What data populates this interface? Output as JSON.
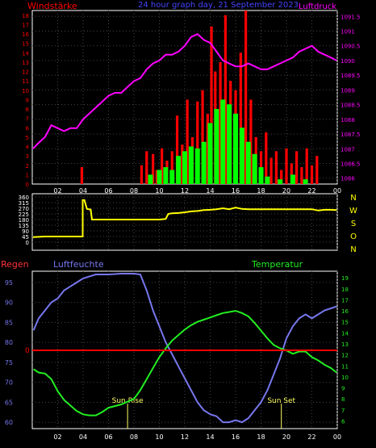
{
  "colors": {
    "background": "#000000",
    "frame": "#ffffff",
    "wind_axis": "#ff0000",
    "pressure": "#ff00ff",
    "wind_gust": "#ff0000",
    "wind_avg": "#00ff00",
    "direction": "#ffff00",
    "compass": "#ffff00",
    "humidity": "#7777ee",
    "temperature": "#22ee22",
    "rain": "#ff0000",
    "sun_marker": "#ffff66"
  },
  "chart_data": [
    {
      "type": "bar",
      "name": "wind_pressure",
      "title": "24 hour graph day, 21 September 2023",
      "ylabel_left": "Windstärke",
      "ylabel_right": "Luftdruck",
      "x_ticks": [
        "02",
        "04",
        "06",
        "08",
        "10",
        "12",
        "14",
        "16",
        "18",
        "20",
        "22",
        "00"
      ],
      "y_left_ticks": [
        0,
        1,
        2,
        3,
        4,
        5,
        6,
        7,
        8,
        9,
        10,
        11,
        12,
        13,
        14,
        15,
        16,
        17,
        18
      ],
      "y_left_lim": [
        0,
        18.5
      ],
      "y_right_ticks": [
        1086,
        1086.5,
        1087,
        1087.5,
        1088,
        1088.5,
        1089,
        1089.5,
        1090,
        1090.5,
        1091,
        1091.5
      ],
      "y_right_lim": [
        1085.8,
        1091.7
      ],
      "series": [
        {
          "name": "Luftdruck",
          "values": [
            [
              0.05,
              1087.0
            ],
            [
              0.5,
              1087.2
            ],
            [
              1,
              1087.4
            ],
            [
              1.5,
              1087.8
            ],
            [
              2,
              1087.7
            ],
            [
              2.5,
              1087.6
            ],
            [
              3,
              1087.7
            ],
            [
              3.5,
              1087.7
            ],
            [
              4,
              1088.0
            ],
            [
              4.5,
              1088.2
            ],
            [
              5,
              1088.4
            ],
            [
              5.5,
              1088.6
            ],
            [
              6,
              1088.8
            ],
            [
              6.5,
              1088.9
            ],
            [
              7,
              1088.9
            ],
            [
              7.5,
              1089.1
            ],
            [
              8,
              1089.3
            ],
            [
              8.5,
              1089.4
            ],
            [
              9,
              1089.7
            ],
            [
              9.5,
              1089.9
            ],
            [
              10,
              1090.0
            ],
            [
              10.5,
              1090.2
            ],
            [
              11,
              1090.2
            ],
            [
              11.5,
              1090.3
            ],
            [
              12,
              1090.5
            ],
            [
              12.5,
              1090.8
            ],
            [
              13,
              1090.9
            ],
            [
              13.5,
              1090.7
            ],
            [
              14,
              1090.6
            ],
            [
              14.5,
              1090.3
            ],
            [
              15,
              1090.0
            ],
            [
              15.5,
              1089.9
            ],
            [
              16,
              1089.8
            ],
            [
              16.5,
              1089.8
            ],
            [
              17,
              1089.9
            ],
            [
              17.5,
              1089.8
            ],
            [
              18,
              1089.7
            ],
            [
              18.5,
              1089.7
            ],
            [
              19,
              1089.8
            ],
            [
              19.5,
              1089.9
            ],
            [
              20,
              1090.0
            ],
            [
              20.5,
              1090.1
            ],
            [
              21,
              1090.3
            ],
            [
              21.5,
              1090.4
            ],
            [
              22,
              1090.5
            ],
            [
              22.5,
              1090.3
            ],
            [
              23,
              1090.2
            ],
            [
              23.5,
              1090.1
            ],
            [
              23.95,
              1090.0
            ]
          ]
        },
        {
          "name": "gust",
          "values": [
            [
              3.9,
              1.8
            ],
            [
              8.6,
              2.0
            ],
            [
              9,
              3.5
            ],
            [
              9.5,
              3.2
            ],
            [
              9.8,
              1.5
            ],
            [
              10.2,
              3.8
            ],
            [
              10.6,
              2.5
            ],
            [
              11,
              3.5
            ],
            [
              11.4,
              7.3
            ],
            [
              11.8,
              4.2
            ],
            [
              12.2,
              9.0
            ],
            [
              12.6,
              5.0
            ],
            [
              13,
              8.8
            ],
            [
              13.4,
              10.0
            ],
            [
              13.8,
              7.5
            ],
            [
              14.1,
              16.8
            ],
            [
              14.4,
              12.0
            ],
            [
              14.8,
              13.0
            ],
            [
              15.2,
              18.0
            ],
            [
              15.6,
              11.0
            ],
            [
              16,
              10.0
            ],
            [
              16.4,
              14.0
            ],
            [
              16.8,
              18.5
            ],
            [
              17.2,
              9.0
            ],
            [
              17.6,
              5.0
            ],
            [
              18,
              3.5
            ],
            [
              18.4,
              5.5
            ],
            [
              18.8,
              2.8
            ],
            [
              19.2,
              3.5
            ],
            [
              19.6,
              1.5
            ],
            [
              20,
              3.8
            ],
            [
              20.4,
              2.2
            ],
            [
              20.8,
              3.5
            ],
            [
              21.2,
              1.8
            ],
            [
              21.6,
              3.8
            ],
            [
              22,
              2.0
            ],
            [
              22.4,
              3.0
            ]
          ]
        },
        {
          "name": "average",
          "values": [
            [
              9.3,
              1.0
            ],
            [
              10,
              1.5
            ],
            [
              10.5,
              1.8
            ],
            [
              11,
              1.5
            ],
            [
              11.5,
              3.0
            ],
            [
              12,
              3.5
            ],
            [
              12.5,
              4.0
            ],
            [
              13,
              3.8
            ],
            [
              13.5,
              4.5
            ],
            [
              14,
              6.5
            ],
            [
              14.5,
              8.0
            ],
            [
              15,
              9.0
            ],
            [
              15.5,
              8.5
            ],
            [
              16,
              7.5
            ],
            [
              16.5,
              6.0
            ],
            [
              17,
              4.5
            ],
            [
              17.5,
              3.2
            ],
            [
              18,
              1.8
            ],
            [
              18.5,
              0.8
            ],
            [
              19.5,
              0.5
            ],
            [
              20.5,
              1.0
            ],
            [
              21.5,
              0.5
            ]
          ]
        }
      ]
    },
    {
      "type": "line",
      "name": "wind_direction",
      "y_ticks": [
        0,
        45,
        90,
        135,
        180,
        225,
        270,
        315,
        360
      ],
      "y_lim": [
        0,
        360
      ],
      "compass_labels": [
        "N",
        "W",
        "S",
        "O",
        "N"
      ],
      "series": [
        {
          "name": "direction",
          "values": [
            [
              0.05,
              40
            ],
            [
              1,
              45
            ],
            [
              2,
              45
            ],
            [
              3,
              45
            ],
            [
              3.97,
              45
            ],
            [
              3.97,
              335
            ],
            [
              4.1,
              335
            ],
            [
              4.3,
              265
            ],
            [
              4.6,
              260
            ],
            [
              4.7,
              180
            ],
            [
              5,
              180
            ],
            [
              6,
              180
            ],
            [
              7,
              180
            ],
            [
              8,
              180
            ],
            [
              9,
              180
            ],
            [
              10,
              180
            ],
            [
              10.5,
              185
            ],
            [
              10.7,
              225
            ],
            [
              11,
              230
            ],
            [
              11.5,
              232
            ],
            [
              12,
              238
            ],
            [
              12.5,
              245
            ],
            [
              13,
              248
            ],
            [
              13.5,
              255
            ],
            [
              14,
              258
            ],
            [
              14.5,
              262
            ],
            [
              15,
              270
            ],
            [
              15.5,
              262
            ],
            [
              16,
              275
            ],
            [
              16.5,
              265
            ],
            [
              17,
              262
            ],
            [
              18,
              262
            ],
            [
              19,
              262
            ],
            [
              20,
              262
            ],
            [
              21,
              262
            ],
            [
              22,
              262
            ],
            [
              22.5,
              252
            ],
            [
              23,
              258
            ],
            [
              23.5,
              258
            ],
            [
              23.95,
              255
            ]
          ]
        }
      ]
    },
    {
      "type": "line",
      "name": "humidity_temperature",
      "ylabel_left": "Regen",
      "ylabel_humidity": "Luftfeuchte",
      "ylabel_right": "Temperatur",
      "rain_value": "0",
      "sunrise_label": "Sun Rise",
      "sunset_label": "Sun Set",
      "sunrise_hour": 7.5,
      "sunset_hour": 19.6,
      "humidity_ticks": [
        60,
        65,
        70,
        75,
        80,
        85,
        90,
        95
      ],
      "humidity_lim": [
        58.4,
        97.8
      ],
      "temp_ticks": [
        6,
        7,
        8,
        9,
        10,
        11,
        12,
        13,
        14,
        15,
        16,
        17,
        18,
        19
      ],
      "temp_lim": [
        5.3,
        19.6
      ],
      "series": [
        {
          "name": "Luftfeuchte",
          "values": [
            [
              0.1,
              83
            ],
            [
              0.5,
              86
            ],
            [
              1,
              88
            ],
            [
              1.5,
              90
            ],
            [
              2,
              91
            ],
            [
              2.5,
              93
            ],
            [
              3,
              94
            ],
            [
              3.5,
              95
            ],
            [
              4,
              96
            ],
            [
              4.5,
              96.5
            ],
            [
              5,
              97
            ],
            [
              5.5,
              97
            ],
            [
              6,
              97
            ],
            [
              7,
              97.2
            ],
            [
              8,
              97.2
            ],
            [
              8.5,
              97
            ],
            [
              9,
              93
            ],
            [
              9.5,
              88
            ],
            [
              10,
              84
            ],
            [
              10.5,
              80
            ],
            [
              11,
              77
            ],
            [
              11.5,
              74
            ],
            [
              12,
              71
            ],
            [
              12.5,
              68
            ],
            [
              13,
              65
            ],
            [
              13.5,
              63
            ],
            [
              14,
              62
            ],
            [
              14.5,
              61.5
            ],
            [
              15,
              60
            ],
            [
              15.5,
              60
            ],
            [
              16,
              60.5
            ],
            [
              16.5,
              60
            ],
            [
              17,
              61
            ],
            [
              17.5,
              63
            ],
            [
              18,
              65
            ],
            [
              18.5,
              68
            ],
            [
              19,
              72
            ],
            [
              19.5,
              76
            ],
            [
              20,
              81
            ],
            [
              20.5,
              84
            ],
            [
              21,
              86
            ],
            [
              21.5,
              87
            ],
            [
              22,
              86
            ],
            [
              22.5,
              87
            ],
            [
              23,
              88
            ],
            [
              23.5,
              88.5
            ],
            [
              23.95,
              89
            ]
          ]
        },
        {
          "name": "Temperatur",
          "values": [
            [
              0.1,
              10.7
            ],
            [
              0.5,
              10.4
            ],
            [
              1,
              10.3
            ],
            [
              1.5,
              9.8
            ],
            [
              2,
              8.7
            ],
            [
              2.5,
              7.9
            ],
            [
              3,
              7.4
            ],
            [
              3.5,
              6.9
            ],
            [
              4,
              6.6
            ],
            [
              4.5,
              6.5
            ],
            [
              5,
              6.5
            ],
            [
              5.5,
              6.8
            ],
            [
              6,
              7.2
            ],
            [
              7,
              7.5
            ],
            [
              8,
              8.0
            ],
            [
              8.5,
              8.8
            ],
            [
              9,
              9.8
            ],
            [
              9.5,
              10.8
            ],
            [
              10,
              11.8
            ],
            [
              10.5,
              12.6
            ],
            [
              11,
              13.3
            ],
            [
              11.5,
              13.8
            ],
            [
              12,
              14.3
            ],
            [
              12.5,
              14.7
            ],
            [
              13,
              15.0
            ],
            [
              13.5,
              15.2
            ],
            [
              14,
              15.4
            ],
            [
              14.5,
              15.6
            ],
            [
              15,
              15.8
            ],
            [
              15.5,
              15.9
            ],
            [
              16,
              16.0
            ],
            [
              16.5,
              15.8
            ],
            [
              17,
              15.5
            ],
            [
              17.5,
              14.9
            ],
            [
              18,
              14.2
            ],
            [
              18.5,
              13.5
            ],
            [
              19,
              12.9
            ],
            [
              19.5,
              12.6
            ],
            [
              20,
              12.4
            ],
            [
              20.5,
              12.1
            ],
            [
              21,
              12.3
            ],
            [
              21.5,
              12.3
            ],
            [
              22,
              11.8
            ],
            [
              22.5,
              11.5
            ],
            [
              23,
              11.1
            ],
            [
              23.5,
              10.8
            ],
            [
              23.95,
              10.4
            ]
          ]
        }
      ]
    }
  ]
}
